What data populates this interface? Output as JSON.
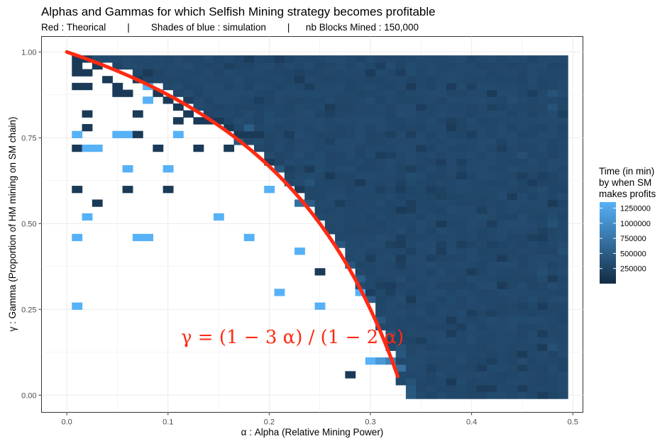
{
  "chart_data": {
    "type": "heatmap",
    "title": "Alphas and Gammas for which Selfish Mining strategy becomes profitable",
    "subtitle": "Red : Theorical        |        Shades of blue : simulation        |      nb Blocks Mined : 150,000",
    "xlabel": "α : Alpha (Relative Mining Power)",
    "ylabel": "γ : Gamma (Proportion of HM mining on SM chain)",
    "xlim": [
      -0.025,
      0.51
    ],
    "ylim": [
      -0.05,
      1.045
    ],
    "x_ticks": [
      "0.0",
      "0.1",
      "0.2",
      "0.3",
      "0.4",
      "0.5"
    ],
    "x_tick_values": [
      0,
      0.1,
      0.2,
      0.3,
      0.4,
      0.5
    ],
    "y_ticks": [
      "0.00",
      "0.25",
      "0.50",
      "0.75",
      "1.00"
    ],
    "y_tick_values": [
      0,
      0.25,
      0.5,
      0.75,
      1.0
    ],
    "grid": true,
    "cell_width": 0.01,
    "cell_height": 0.02,
    "alpha_range": [
      0.01,
      0.49
    ],
    "gamma_range": [
      0.0,
      0.98
    ],
    "color_scale": {
      "low": "#132b43",
      "high": "#56b1f7",
      "min": 0,
      "max": 1350000
    },
    "legend": {
      "title_lines": [
        "Time (in min)",
        "by when SM",
        "makes profits"
      ],
      "ticks": [
        "1250000",
        "1000000",
        "750000",
        "500000",
        "250000"
      ],
      "tick_values": [
        1250000,
        1000000,
        750000,
        500000,
        250000
      ],
      "placement": "right"
    },
    "theoretical_curve": {
      "label": "γ = (1 − 3 α) / (1 − 2 α)",
      "color": "#ff2a12",
      "alpha_range": [
        0.0,
        0.327
      ]
    },
    "isolated_cells": [
      {
        "alpha": 0.01,
        "gamma": 0.98,
        "value": 150000
      },
      {
        "alpha": 0.02,
        "gamma": 0.98,
        "value": 150000
      },
      {
        "alpha": 0.01,
        "gamma": 0.96,
        "value": 150000
      },
      {
        "alpha": 0.01,
        "gamma": 0.94,
        "value": 150000
      },
      {
        "alpha": 0.02,
        "gamma": 0.94,
        "value": 150000
      },
      {
        "alpha": 0.03,
        "gamma": 0.96,
        "value": 150000
      },
      {
        "alpha": 0.04,
        "gamma": 0.92,
        "value": 150000
      },
      {
        "alpha": 0.05,
        "gamma": 0.9,
        "value": 150000
      },
      {
        "alpha": 0.05,
        "gamma": 0.88,
        "value": 150000
      },
      {
        "alpha": 0.06,
        "gamma": 0.88,
        "value": 150000
      },
      {
        "alpha": 0.07,
        "gamma": 0.92,
        "value": 150000
      },
      {
        "alpha": 0.08,
        "gamma": 0.9,
        "value": 150000
      },
      {
        "alpha": 0.08,
        "gamma": 0.94,
        "value": 150000
      },
      {
        "alpha": 0.01,
        "gamma": 0.9,
        "value": 150000
      },
      {
        "alpha": 0.02,
        "gamma": 0.9,
        "value": 150000
      },
      {
        "alpha": 0.09,
        "gamma": 0.88,
        "value": 150000
      },
      {
        "alpha": 0.1,
        "gamma": 0.86,
        "value": 150000
      },
      {
        "alpha": 0.11,
        "gamma": 0.84,
        "value": 150000
      },
      {
        "alpha": 0.11,
        "gamma": 0.8,
        "value": 150000
      },
      {
        "alpha": 0.12,
        "gamma": 0.82,
        "value": 150000
      },
      {
        "alpha": 0.13,
        "gamma": 0.8,
        "value": 150000
      },
      {
        "alpha": 0.14,
        "gamma": 0.8,
        "value": 150000
      },
      {
        "alpha": 0.15,
        "gamma": 0.8,
        "value": 150000
      },
      {
        "alpha": 0.16,
        "gamma": 0.78,
        "value": 150000
      },
      {
        "alpha": 0.17,
        "gamma": 0.76,
        "value": 150000
      },
      {
        "alpha": 0.18,
        "gamma": 0.76,
        "value": 150000
      },
      {
        "alpha": 0.19,
        "gamma": 0.76,
        "value": 150000
      },
      {
        "alpha": 0.02,
        "gamma": 0.82,
        "value": 150000
      },
      {
        "alpha": 0.02,
        "gamma": 0.78,
        "value": 150000
      },
      {
        "alpha": 0.01,
        "gamma": 0.72,
        "value": 150000
      },
      {
        "alpha": 0.07,
        "gamma": 0.82,
        "value": 150000
      },
      {
        "alpha": 0.07,
        "gamma": 0.76,
        "value": 150000
      },
      {
        "alpha": 0.09,
        "gamma": 0.72,
        "value": 150000
      },
      {
        "alpha": 0.13,
        "gamma": 0.72,
        "value": 150000
      },
      {
        "alpha": 0.16,
        "gamma": 0.72,
        "value": 150000
      },
      {
        "alpha": 0.01,
        "gamma": 0.6,
        "value": 150000
      },
      {
        "alpha": 0.06,
        "gamma": 0.6,
        "value": 150000
      },
      {
        "alpha": 0.1,
        "gamma": 0.6,
        "value": 150000
      },
      {
        "alpha": 0.03,
        "gamma": 0.56,
        "value": 150000
      },
      {
        "alpha": 0.25,
        "gamma": 0.36,
        "value": 150000
      },
      {
        "alpha": 0.28,
        "gamma": 0.06,
        "value": 150000
      },
      {
        "alpha": 0.01,
        "gamma": 0.76,
        "value": 1350000
      },
      {
        "alpha": 0.02,
        "gamma": 0.72,
        "value": 1350000
      },
      {
        "alpha": 0.03,
        "gamma": 0.72,
        "value": 1350000
      },
      {
        "alpha": 0.05,
        "gamma": 0.76,
        "value": 1350000
      },
      {
        "alpha": 0.06,
        "gamma": 0.76,
        "value": 1350000
      },
      {
        "alpha": 0.08,
        "gamma": 0.86,
        "value": 1350000
      },
      {
        "alpha": 0.08,
        "gamma": 0.9,
        "value": 1350000
      },
      {
        "alpha": 0.11,
        "gamma": 0.76,
        "value": 1350000
      },
      {
        "alpha": 0.06,
        "gamma": 0.66,
        "value": 1350000
      },
      {
        "alpha": 0.1,
        "gamma": 0.66,
        "value": 1350000
      },
      {
        "alpha": 0.02,
        "gamma": 0.52,
        "value": 1350000
      },
      {
        "alpha": 0.01,
        "gamma": 0.46,
        "value": 1350000
      },
      {
        "alpha": 0.07,
        "gamma": 0.46,
        "value": 1350000
      },
      {
        "alpha": 0.08,
        "gamma": 0.46,
        "value": 1350000
      },
      {
        "alpha": 0.15,
        "gamma": 0.52,
        "value": 1350000
      },
      {
        "alpha": 0.18,
        "gamma": 0.46,
        "value": 1350000
      },
      {
        "alpha": 0.2,
        "gamma": 0.6,
        "value": 1350000
      },
      {
        "alpha": 0.23,
        "gamma": 0.42,
        "value": 1350000
      },
      {
        "alpha": 0.21,
        "gamma": 0.3,
        "value": 1350000
      },
      {
        "alpha": 0.25,
        "gamma": 0.26,
        "value": 1350000
      },
      {
        "alpha": 0.29,
        "gamma": 0.3,
        "value": 1350000
      },
      {
        "alpha": 0.01,
        "gamma": 0.26,
        "value": 1350000
      },
      {
        "alpha": 0.3,
        "gamma": 0.1,
        "value": 1350000
      },
      {
        "alpha": 0.31,
        "gamma": 0.1,
        "value": 1100000
      },
      {
        "alpha": 0.32,
        "gamma": 0.1,
        "value": 900000
      },
      {
        "alpha": 0.33,
        "gamma": 0.08,
        "value": 700000
      },
      {
        "alpha": 0.23,
        "gamma": 0.56,
        "value": 700000
      },
      {
        "alpha": 0.24,
        "gamma": 0.56,
        "value": 500000
      },
      {
        "alpha": 0.24,
        "gamma": 0.62,
        "value": 400000
      },
      {
        "alpha": 0.21,
        "gamma": 0.66,
        "value": 450000
      },
      {
        "alpha": 0.17,
        "gamma": 0.74,
        "value": 450000
      },
      {
        "alpha": 0.18,
        "gamma": 0.78,
        "value": 500000
      },
      {
        "alpha": 0.27,
        "gamma": 0.44,
        "value": 450000
      },
      {
        "alpha": 0.28,
        "gamma": 0.38,
        "value": 450000
      },
      {
        "alpha": 0.29,
        "gamma": 0.34,
        "value": 500000
      },
      {
        "alpha": 0.3,
        "gamma": 0.28,
        "value": 500000
      },
      {
        "alpha": 0.31,
        "gamma": 0.22,
        "value": 450000
      },
      {
        "alpha": 0.32,
        "gamma": 0.18,
        "value": 400000
      },
      {
        "alpha": 0.33,
        "gamma": 0.14,
        "value": 400000
      },
      {
        "alpha": 0.33,
        "gamma": 0.12,
        "value": 450000
      },
      {
        "alpha": 0.34,
        "gamma": 0.04,
        "value": 400000
      },
      {
        "alpha": 0.34,
        "gamma": 0.02,
        "value": 450000
      },
      {
        "alpha": 0.34,
        "gamma": 0.0,
        "value": 450000
      },
      {
        "alpha": 0.48,
        "gamma": 0.88,
        "value": 400000
      },
      {
        "alpha": 0.48,
        "gamma": 0.84,
        "value": 400000
      },
      {
        "alpha": 0.44,
        "gamma": 0.86,
        "value": 350000
      },
      {
        "alpha": 0.45,
        "gamma": 0.7,
        "value": 360000
      },
      {
        "alpha": 0.48,
        "gamma": 0.5,
        "value": 380000
      },
      {
        "alpha": 0.47,
        "gamma": 0.36,
        "value": 360000
      },
      {
        "alpha": 0.48,
        "gamma": 0.14,
        "value": 380000
      },
      {
        "alpha": 0.49,
        "gamma": 0.42,
        "value": 350000
      },
      {
        "alpha": 0.4,
        "gamma": 0.24,
        "value": 200000
      },
      {
        "alpha": 0.38,
        "gamma": 0.18,
        "value": 180000
      },
      {
        "alpha": 0.35,
        "gamma": 0.16,
        "value": 200000
      },
      {
        "alpha": 0.42,
        "gamma": 0.1,
        "value": 200000
      },
      {
        "alpha": 0.38,
        "gamma": 0.04,
        "value": 150000
      },
      {
        "alpha": 0.45,
        "gamma": 0.02,
        "value": 180000
      },
      {
        "alpha": 0.36,
        "gamma": 0.6,
        "value": 200000
      },
      {
        "alpha": 0.4,
        "gamma": 0.76,
        "value": 200000
      },
      {
        "alpha": 0.31,
        "gamma": 0.7,
        "value": 180000
      },
      {
        "alpha": 0.22,
        "gamma": 0.76,
        "value": 180000
      },
      {
        "alpha": 0.27,
        "gamma": 0.56,
        "value": 200000
      }
    ]
  }
}
